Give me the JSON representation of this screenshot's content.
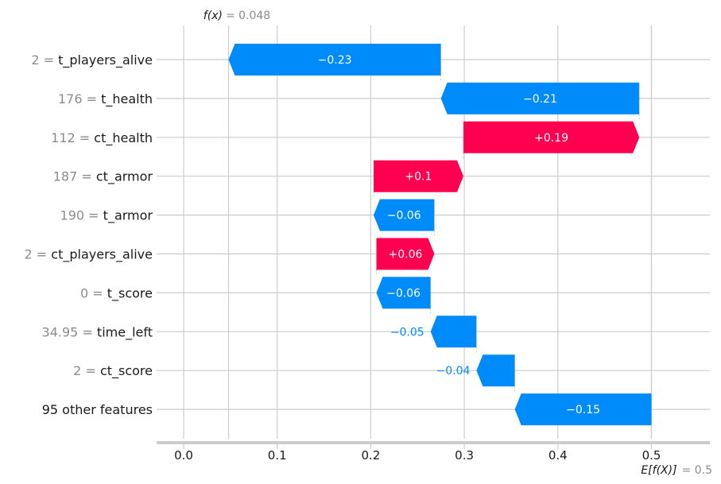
{
  "chart_data": {
    "type": "waterfall",
    "fx_label": "f(x)",
    "fx_value_text": "= 0.048",
    "fx_value": 0.048,
    "efx_label": "E[f(X)]",
    "efx_value_text": "= 0.5",
    "efx_value": 0.5,
    "xlim": [
      -0.03,
      0.56
    ],
    "xticks": [
      0.0,
      0.1,
      0.2,
      0.3,
      0.4,
      0.5
    ],
    "xtick_labels": [
      "0.0",
      "0.1",
      "0.2",
      "0.3",
      "0.4",
      "0.5"
    ],
    "colors": {
      "positive": "#ff0051",
      "negative": "#008bfb",
      "grid": "#cccccc",
      "axis": "#cccccc"
    },
    "features": [
      {
        "value": "2",
        "name": "t_players_alive",
        "label": "−0.23",
        "start": 0.275,
        "end": 0.048
      },
      {
        "value": "176",
        "name": "t_health",
        "label": "−0.21",
        "start": 0.487,
        "end": 0.275
      },
      {
        "value": "112",
        "name": "ct_health",
        "label": "+0.19",
        "start": 0.299,
        "end": 0.487
      },
      {
        "value": "187",
        "name": "ct_armor",
        "label": "+0.1",
        "start": 0.203,
        "end": 0.299
      },
      {
        "value": "190",
        "name": "t_armor",
        "label": "−0.06",
        "start": 0.268,
        "end": 0.203
      },
      {
        "value": "2",
        "name": "ct_players_alive",
        "label": "+0.06",
        "start": 0.206,
        "end": 0.268
      },
      {
        "value": "0",
        "name": "t_score",
        "label": "−0.06",
        "start": 0.264,
        "end": 0.206
      },
      {
        "value": "34.95",
        "name": "time_left",
        "label": "−0.05",
        "start": 0.313,
        "end": 0.264
      },
      {
        "value": "2",
        "name": "ct_score",
        "label": "−0.04",
        "start": 0.354,
        "end": 0.313
      },
      {
        "value": "",
        "name": "95 other features",
        "label": "−0.15",
        "start": 0.5,
        "end": 0.354
      }
    ]
  }
}
